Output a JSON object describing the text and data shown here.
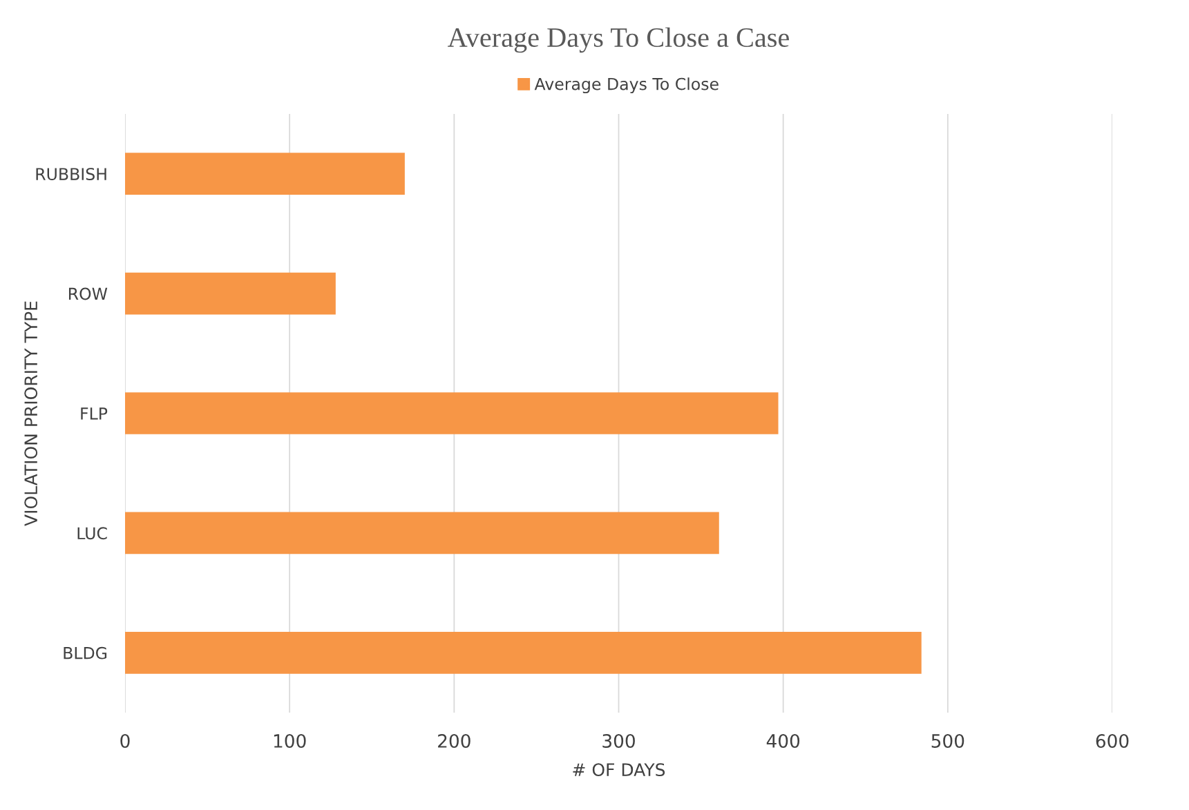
{
  "chart_data": {
    "type": "bar",
    "orientation": "horizontal",
    "title": "Average Days To Close a Case",
    "xlabel": "# OF DAYS",
    "ylabel": "VIOLATION PRIORITY TYPE",
    "categories": [
      "RUBBISH",
      "ROW",
      "FLP",
      "LUC",
      "BLDG"
    ],
    "series": [
      {
        "name": "Average Days To Close",
        "color": "#f79646",
        "values": [
          170,
          128,
          397,
          361,
          484
        ]
      }
    ],
    "xlim": [
      0,
      600
    ],
    "xticks": [
      0,
      100,
      200,
      300,
      400,
      500,
      600
    ],
    "grid": "x",
    "legend": "top"
  }
}
